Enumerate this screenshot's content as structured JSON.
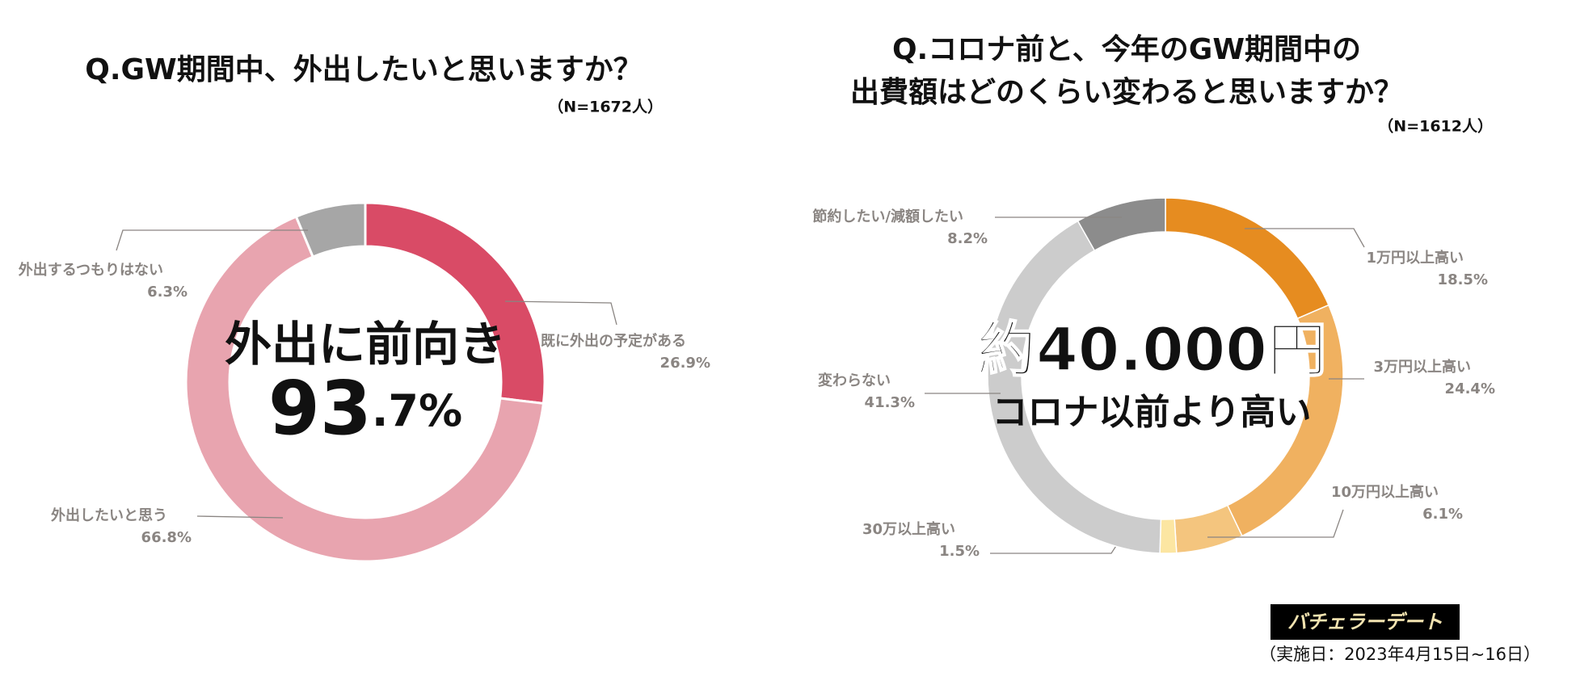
{
  "chart_data": [
    {
      "type": "pie",
      "title": "Q.GW期間中、外出したいと思いますか？",
      "subtitle": "（N=1672人）",
      "categories": [
        "既に外出の予定がある",
        "外出したいと思う",
        "外出するつもりはない"
      ],
      "values": [
        26.9,
        66.8,
        6.3
      ],
      "value_labels": [
        "26.9%",
        "66.8%",
        "6.3%"
      ],
      "colors": [
        "#d94b66",
        "#e8a4af",
        "#a6a6a6"
      ],
      "center_text": "外出に前向き",
      "center_value": 93.7,
      "center_value_label": "93.7%"
    },
    {
      "type": "pie",
      "title": [
        "Q.コロナ前と、今年のGW期間中の",
        "出費額はどのくらい変わると思いますか？"
      ],
      "subtitle": "（N=1612人）",
      "categories": [
        "1万円以上高い",
        "3万円以上高い",
        "10万円以上高い",
        "30万以上高い",
        "変わらない",
        "節約したい/減額したい"
      ],
      "values": [
        18.5,
        24.4,
        6.1,
        1.5,
        41.3,
        8.2
      ],
      "value_labels": [
        "18.5%",
        "24.4%",
        "6.1%",
        "1.5%",
        "41.3%",
        "8.2%"
      ],
      "colors": [
        "#e68c20",
        "#f0b160",
        "#f4c57e",
        "#fce6a2",
        "#cccccc",
        "#8c8c8c"
      ],
      "center_text": "約40.000円",
      "center_subtext": "コロナ以前より高い"
    }
  ],
  "footer": {
    "logo": "バチェラーデート",
    "date": "（実施日：2023年4月15日~16日）"
  }
}
